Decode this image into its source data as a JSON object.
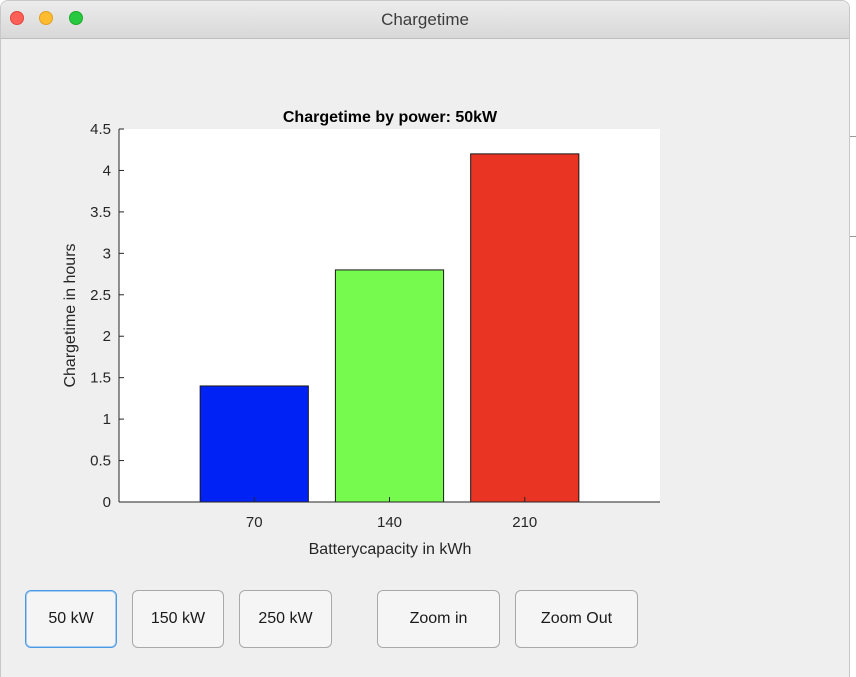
{
  "window": {
    "title": "Chargetime"
  },
  "chart_data": {
    "type": "bar",
    "title": "Chargetime by power: 50kW",
    "xlabel": "Batterycapacity in kWh",
    "ylabel": "Chargetime in hours",
    "categories": [
      "70",
      "140",
      "210"
    ],
    "x": [
      70,
      140,
      210
    ],
    "values": [
      1.4,
      2.8,
      4.2
    ],
    "bar_colors": [
      "#0022f5",
      "#75fa4d",
      "#e93323"
    ],
    "ylim": [
      0,
      4.5
    ],
    "xlim": [
      0,
      280
    ],
    "yticks": [
      "0",
      "0.5",
      "1",
      "1.5",
      "2",
      "2.5",
      "3",
      "3.5",
      "4",
      "4.5"
    ],
    "grid": false
  },
  "buttons": {
    "b50": "50 kW",
    "b150": "150 kW",
    "b250": "250 kW",
    "zoom_in": "Zoom in",
    "zoom_out": "Zoom Out"
  }
}
